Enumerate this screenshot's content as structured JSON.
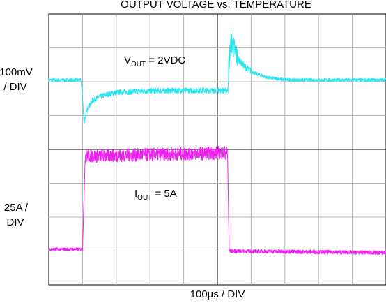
{
  "chart_data": {
    "type": "line",
    "title": "OUTPUT VOLTAGE vs. TEMPERATURE",
    "xlabel": "100µs / DIV",
    "grid": {
      "x_divisions": 10,
      "y_divisions": 8,
      "on": true
    },
    "x_range_us": [
      0,
      1000
    ],
    "y_range_div": [
      0,
      8
    ],
    "channel_labels": {
      "voltage": {
        "line1": "100mV",
        "line2": "/ DIV"
      },
      "current": {
        "line1": "25A /",
        "line2": "DIV"
      }
    },
    "annotations": {
      "vout": {
        "main": "V",
        "sub": "OUT",
        "rest": " = 2VDC"
      },
      "iout": {
        "main": "I",
        "sub": "OUT",
        "rest": " = 5A"
      }
    },
    "series": [
      {
        "key": "voltage",
        "color": "#27e6ee",
        "baseline_div": 6.05,
        "points_us": [
          0,
          95,
          100,
          104,
          115,
          130,
          150,
          170,
          200,
          240,
          280,
          330,
          380,
          430,
          480,
          530,
          534,
          540,
          550,
          560,
          580,
          610,
          650,
          700,
          750,
          800,
          850,
          900,
          950,
          1000
        ],
        "points_div": [
          6.05,
          6.05,
          5.6,
          4.8,
          5.2,
          5.45,
          5.55,
          5.62,
          5.68,
          5.7,
          5.72,
          5.73,
          5.74,
          5.74,
          5.74,
          5.74,
          6.5,
          7.2,
          6.95,
          6.7,
          6.45,
          6.25,
          6.12,
          6.06,
          6.05,
          6.05,
          6.05,
          6.05,
          6.05,
          6.05
        ],
        "noise_div": [
          [
            0,
            0.05
          ],
          [
            100,
            0.08
          ],
          [
            530,
            0.35
          ],
          [
            560,
            0.1
          ],
          [
            600,
            0.05
          ]
        ]
      },
      {
        "key": "current",
        "color": "#ee22ee",
        "points_us": [
          0,
          95,
          100,
          108,
          525,
          530,
          535,
          1000
        ],
        "points_div": [
          1.05,
          1.05,
          1.05,
          3.8,
          3.9,
          3.9,
          1.0,
          0.95
        ],
        "noise_div": [
          [
            0,
            0.05
          ],
          [
            108,
            0.2
          ],
          [
            532,
            0.06
          ]
        ]
      }
    ]
  }
}
